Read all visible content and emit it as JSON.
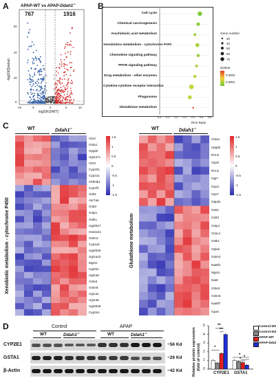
{
  "panels": {
    "a": "A",
    "b": "B",
    "c": "C",
    "d": "D"
  },
  "volcano": {
    "title_prefix": "APAP-WT vs APAP-",
    "title_gene": "Ddah1",
    "title_sup": "-/-",
    "down_count": "767",
    "up_count": "1916",
    "ylabel": "-log10(Qvalue)",
    "xlabel": "log2(KO/WT)",
    "yticks": [
      "60",
      "40",
      "20",
      "0"
    ],
    "xticks": [
      "-10",
      "-5",
      "0",
      "5",
      "10"
    ]
  },
  "pathway": {
    "terms": [
      "Cell cycle",
      "Chemical carcinogenesis",
      "Arachidonic acid metabolism",
      "Xenobiotics metabolism - cytochrome P450",
      "Chemokine signaling pathway",
      "PPAR signaling pathway",
      "Drug metabolism - other enzymes",
      "Cytokine-cytokine receptor interaction",
      "Phagosome",
      "Glutathione metabolism"
    ],
    "xlabel": "Rich Ratio",
    "xticks": [
      "0.0",
      "0.1",
      "0.2",
      "0.3",
      "0.4",
      "0.5",
      "0.6"
    ],
    "legend_size_title": "Gene number",
    "legend_sizes": [
      "30",
      "40",
      "50",
      "60",
      "70"
    ],
    "legend_color_title": "Qvalue",
    "legend_colors": [
      "0.0002",
      "0.0001"
    ]
  },
  "heatmap_left": {
    "group_wt": "WT",
    "group_ko": "Ddah1",
    "group_sup": "-/-",
    "side_label": "Xenobiotic metabolism - cytochrome P450",
    "genes": [
      "Cbr2",
      "Gsta1",
      "Hpgds",
      "Ugt1a7c",
      "Cbr3",
      "Cyp1b1",
      "Cyp1a1",
      "Aldh3b1",
      "Cyp2f2",
      "Gstt1",
      "Akr7a5",
      "Gstt3",
      "Gstp1",
      "Gstk1",
      "Ugt2b37",
      "Hsd11b1",
      "Gstm2",
      "Cyp1a2",
      "Ugt2b35",
      "Ugt1a10",
      "Mgst1",
      "Ugt2b1",
      "Ugt1a9",
      "Gsta3",
      "Gstm6",
      "Ugt1a1",
      "Ugt1a5",
      "Ugt2b38",
      "Cyp2e1"
    ],
    "scale": [
      "1.5",
      "1",
      "0.5",
      "0",
      "-0.5",
      "-1",
      "-1.5"
    ]
  },
  "heatmap_right": {
    "group_wt": "WT",
    "group_ko": "Ddah1",
    "group_sup": "-/-",
    "side_label": "Glutathione metabolism",
    "genes": [
      "Gsta1",
      "Hpgds",
      "Rrm2",
      "Gpx8",
      "Rrm1",
      "Ggt7",
      "Gpx3",
      "Gpx7",
      "G6pdx",
      "Gstt1",
      "Gstt3",
      "Gstp1",
      "Chac1",
      "Gstk1",
      "Oplah",
      "Gstm2",
      "Nat8f1",
      "Mgst1",
      "Nat8",
      "Gsta3",
      "Gstm6",
      "Nat8f7",
      "Gpx6"
    ],
    "scale": [
      "1.5",
      "1",
      "0.5",
      "0",
      "-0.5",
      "-1",
      "-1.5"
    ]
  },
  "blot": {
    "group_control": "Control",
    "group_apap": "APAP",
    "lane_wt": "WT",
    "lane_ko": "Ddah1",
    "lane_sup": "-/-",
    "rows": [
      "CYP2E1",
      "GSTA1",
      "β-Actin"
    ],
    "kda": [
      "~56 Kd",
      "~26 Kd",
      "~42 Kd"
    ]
  },
  "bar": {
    "ylabel": "Relative protein expression",
    "ylabel2": "(fold of control)",
    "yticks": [
      "5",
      "4",
      "3",
      "2",
      "1",
      "0"
    ],
    "categories": [
      "CYP2E1",
      "GSTA1"
    ],
    "legend": [
      "Control-WT",
      "Control-Ddah1-/-",
      "APAP-WT",
      "APAP-Ddah1-/-"
    ],
    "colors": [
      "#ffffff",
      "#888888",
      "#e02020",
      "#1f2fd6"
    ],
    "sig": [
      "*",
      "**",
      "**",
      "*",
      "*",
      "*"
    ]
  },
  "chart_data": {
    "type": "bar",
    "categories": [
      "CYP2E1",
      "GSTA1"
    ],
    "ylabel": "Relative protein expression (fold of control)",
    "ylim": [
      0,
      5
    ],
    "series": [
      {
        "name": "Control-WT",
        "values": [
          1.0,
          1.0
        ]
      },
      {
        "name": "Control-Ddah1-/-",
        "values": [
          0.7,
          0.85
        ]
      },
      {
        "name": "APAP-WT",
        "values": [
          1.8,
          0.75
        ]
      },
      {
        "name": "APAP-Ddah1-/-",
        "values": [
          4.0,
          0.45
        ]
      }
    ]
  }
}
